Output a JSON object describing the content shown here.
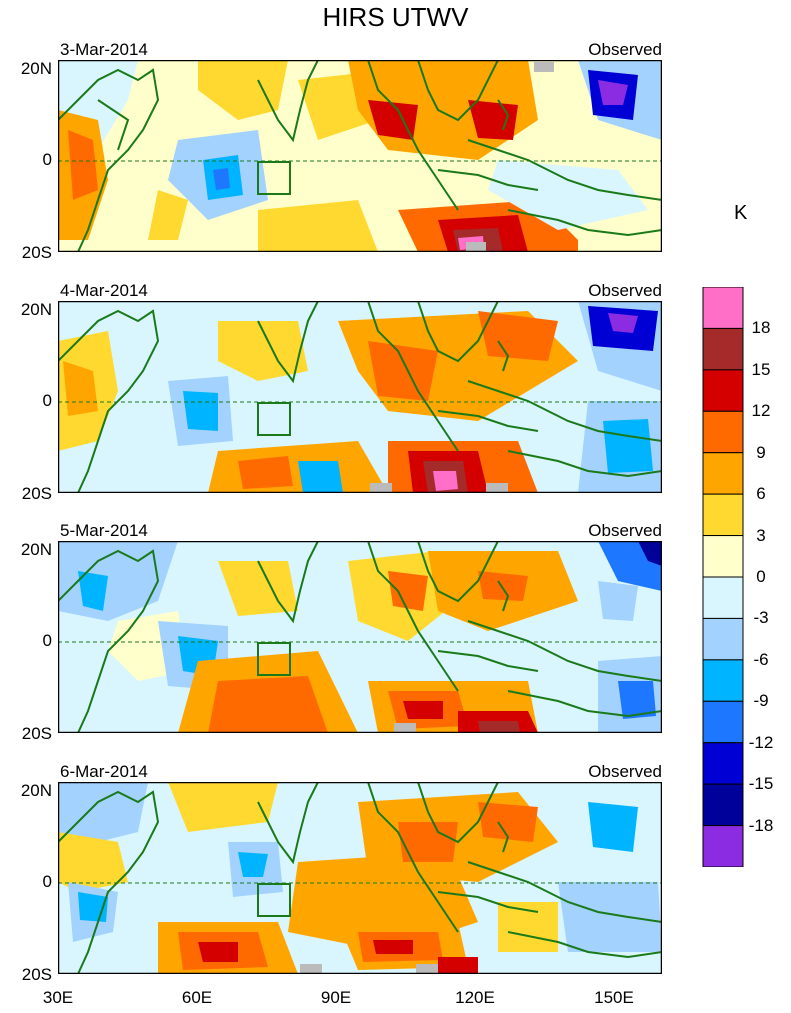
{
  "title": "HIRS UTWV",
  "unit": "K",
  "lat_labels": [
    "20N",
    "0",
    "20S"
  ],
  "lon_labels": [
    "30E",
    "60E",
    "90E",
    "120E",
    "150E"
  ],
  "panels": [
    {
      "date": "3-Mar-2014",
      "label": "Observed"
    },
    {
      "date": "4-Mar-2014",
      "label": "Observed"
    },
    {
      "date": "5-Mar-2014",
      "label": "Observed"
    },
    {
      "date": "6-Mar-2014",
      "label": "Observed"
    }
  ],
  "colorbar": {
    "labels": [
      "18",
      "15",
      "12",
      "9",
      "6",
      "3",
      "0",
      "-3",
      "-6",
      "-9",
      "-12",
      "-15",
      "-18"
    ],
    "colors": [
      "#ff6ec7",
      "#a52a2a",
      "#d40000",
      "#ff6a00",
      "#ffa500",
      "#ffd92f",
      "#ffffcc",
      "#d9f6ff",
      "#a3d2ff",
      "#00b4ff",
      "#1e78ff",
      "#0000d4",
      "#00009b",
      "#8b2be2"
    ]
  },
  "colors": {
    "land_outline": "#1a7a1a",
    "missing": "#bbbbbb"
  }
}
